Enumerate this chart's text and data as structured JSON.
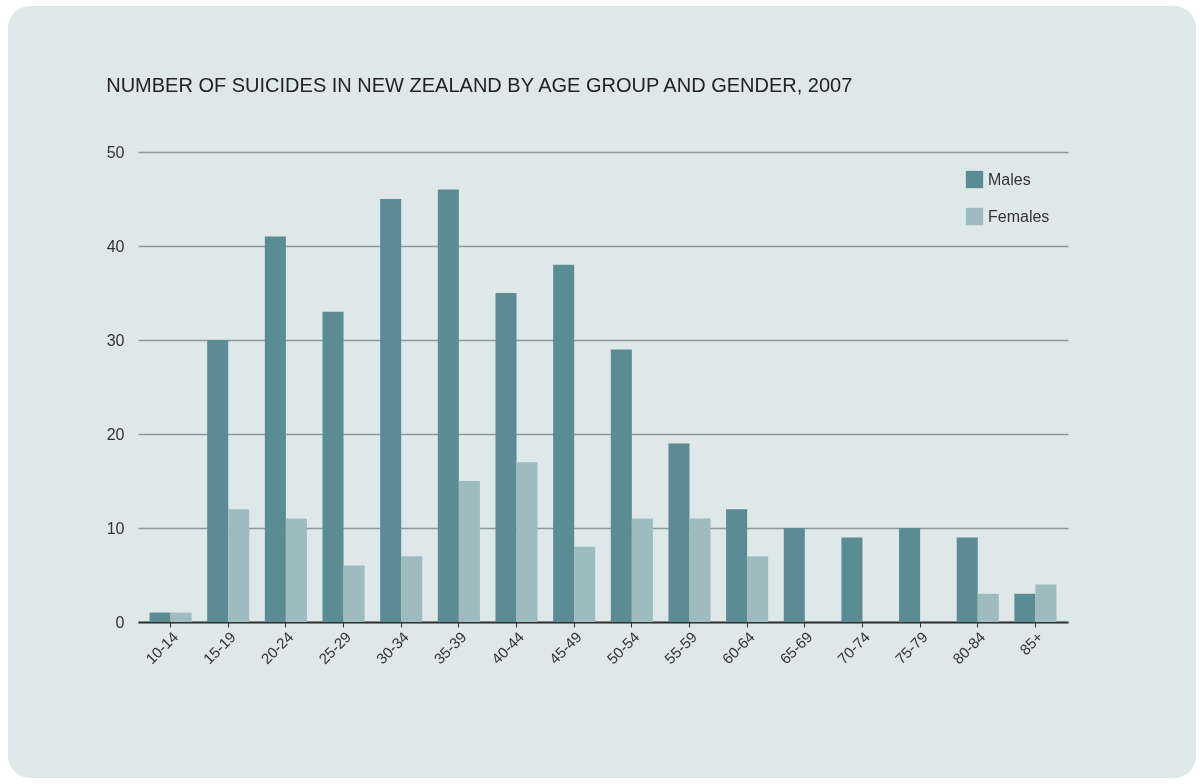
{
  "chart_data": {
    "type": "bar",
    "title": "NUMBER OF SUICIDES IN NEW ZEALAND BY AGE GROUP AND GENDER, 2007",
    "categories": [
      "10-14",
      "15-19",
      "20-24",
      "25-29",
      "30-34",
      "35-39",
      "40-44",
      "45-49",
      "50-54",
      "55-59",
      "60-64",
      "65-69",
      "70-74",
      "75-79",
      "80-84",
      "85+"
    ],
    "series": [
      {
        "name": "Males",
        "color": "#5b8c93",
        "values": [
          1,
          30,
          41,
          33,
          45,
          46,
          35,
          38,
          29,
          19,
          12,
          10,
          9,
          10,
          9,
          3
        ]
      },
      {
        "name": "Females",
        "color": "#9ebcc0",
        "values": [
          1,
          12,
          11,
          6,
          7,
          15,
          17,
          8,
          11,
          11,
          7,
          0,
          0,
          0,
          3,
          4
        ]
      }
    ],
    "ylim": [
      0,
      50
    ],
    "yticks": [
      0,
      10,
      20,
      30,
      40,
      50
    ],
    "grid": "y",
    "legend": "top right"
  }
}
